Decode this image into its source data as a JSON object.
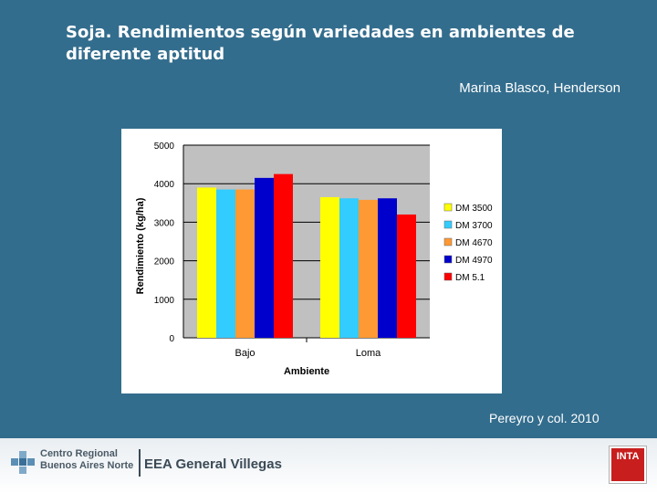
{
  "slide": {
    "title": "Soja. Rendimientos según variedades en ambientes de diferente aptitud",
    "author": "Marina Blasco, Henderson",
    "source": "Pereyro y col. 2010"
  },
  "footer": {
    "line1": "Centro Regional",
    "line2": "Buenos Aires Norte",
    "eea": "EEA General Villegas",
    "inta": "INTA"
  },
  "colors": {
    "background": "#336d8d",
    "plot_area": "#c0c0c0"
  },
  "chart_data": {
    "type": "bar",
    "title": "",
    "xlabel": "Ambiente",
    "ylabel": "Rendimiento (kg/ha)",
    "ylim": [
      0,
      5000
    ],
    "yticks": [
      0,
      1000,
      2000,
      3000,
      4000,
      5000
    ],
    "categories": [
      "Bajo",
      "Loma"
    ],
    "legend_position": "right",
    "series": [
      {
        "name": "DM 3500",
        "color": "#ffff00",
        "values": [
          3900,
          3650
        ]
      },
      {
        "name": "DM 3700",
        "color": "#33ccff",
        "values": [
          3850,
          3620
        ]
      },
      {
        "name": "DM 4670",
        "color": "#ff9933",
        "values": [
          3850,
          3580
        ]
      },
      {
        "name": "DM 4970",
        "color": "#0000cc",
        "values": [
          4150,
          3620
        ]
      },
      {
        "name": "DM 5.1",
        "color": "#ff0000",
        "values": [
          4250,
          3200
        ]
      }
    ]
  }
}
